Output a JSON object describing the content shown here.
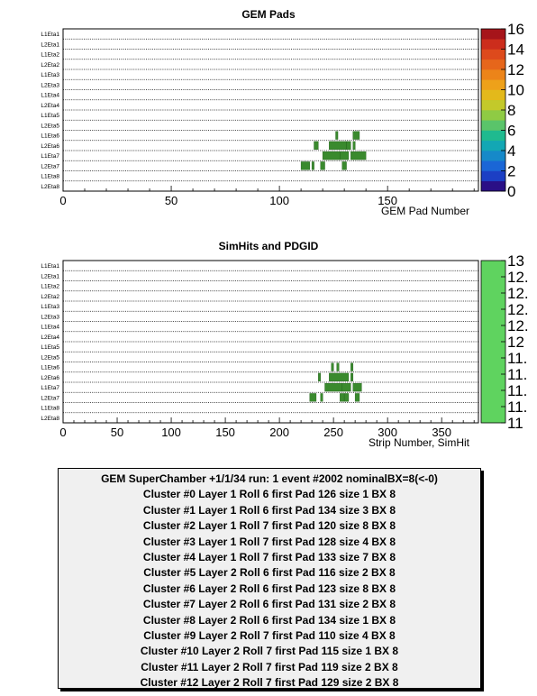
{
  "panels": [
    {
      "title": "GEM Pads",
      "xlabel": "GEM Pad Number",
      "xticks": [
        0,
        50,
        100,
        150
      ],
      "zticks": [
        "0",
        "2",
        "4",
        "6",
        "8",
        "10",
        "12",
        "14",
        "16"
      ]
    },
    {
      "title": "SimHits and PDGID",
      "xlabel": "Strip Number, SimHit",
      "xticks": [
        0,
        50,
        100,
        150,
        200,
        250,
        300,
        350
      ],
      "zticks": [
        "11",
        "11.",
        "11.",
        "11.",
        "11.",
        "12",
        "12.",
        "12.",
        "12.",
        "12.",
        "13"
      ]
    }
  ],
  "row_labels": [
    "L1Eta1",
    "L2Eta1",
    "L1Eta2",
    "L2Eta2",
    "L1Eta3",
    "L2Eta3",
    "L1Eta4",
    "L2Eta4",
    "L1Eta5",
    "L2Eta5",
    "L1Eta6",
    "L2Eta6",
    "L1Eta7",
    "L2Eta7",
    "L1Eta8",
    "L2Eta8"
  ],
  "colors": {
    "marker_green": "#3a8a2e",
    "sim_palette": "#5fd35f",
    "info_bg": "#f0f0f0"
  },
  "chart_data": [
    {
      "type": "heatmap",
      "title": "GEM Pads",
      "xlabel": "GEM Pad Number",
      "xlim": [
        0,
        192
      ],
      "zlim": [
        0,
        16
      ],
      "y_categories": [
        "L1Eta1",
        "L2Eta1",
        "L1Eta2",
        "L2Eta2",
        "L1Eta3",
        "L2Eta3",
        "L1Eta4",
        "L2Eta4",
        "L1Eta5",
        "L2Eta5",
        "L1Eta6",
        "L2Eta6",
        "L1Eta7",
        "L2Eta7",
        "L1Eta8",
        "L2Eta8"
      ],
      "cells": [
        {
          "row": "L1Eta6",
          "start": 126,
          "size": 1
        },
        {
          "row": "L1Eta6",
          "start": 134,
          "size": 3
        },
        {
          "row": "L2Eta6",
          "start": 116,
          "size": 2
        },
        {
          "row": "L2Eta6",
          "start": 123,
          "size": 8
        },
        {
          "row": "L2Eta6",
          "start": 131,
          "size": 2
        },
        {
          "row": "L2Eta6",
          "start": 134,
          "size": 1
        },
        {
          "row": "L1Eta7",
          "start": 120,
          "size": 8
        },
        {
          "row": "L1Eta7",
          "start": 128,
          "size": 4
        },
        {
          "row": "L1Eta7",
          "start": 133,
          "size": 7
        },
        {
          "row": "L2Eta7",
          "start": 110,
          "size": 4
        },
        {
          "row": "L2Eta7",
          "start": 115,
          "size": 1
        },
        {
          "row": "L2Eta7",
          "start": 119,
          "size": 2
        },
        {
          "row": "L2Eta7",
          "start": 129,
          "size": 2
        }
      ]
    },
    {
      "type": "heatmap",
      "title": "SimHits and PDGID",
      "xlabel": "Strip Number, SimHit",
      "xlim": [
        0,
        384
      ],
      "zlim": [
        11,
        13
      ],
      "y_categories": [
        "L1Eta1",
        "L2Eta1",
        "L1Eta2",
        "L2Eta2",
        "L1Eta3",
        "L2Eta3",
        "L1Eta4",
        "L2Eta4",
        "L1Eta5",
        "L2Eta5",
        "L1Eta6",
        "L2Eta6",
        "L1Eta7",
        "L2Eta7",
        "L1Eta8",
        "L2Eta8"
      ],
      "cells": [
        {
          "row": "L1Eta6",
          "start": 248,
          "size": 2
        },
        {
          "row": "L1Eta6",
          "start": 253,
          "size": 2
        },
        {
          "row": "L1Eta6",
          "start": 266,
          "size": 2
        },
        {
          "row": "L2Eta6",
          "start": 236,
          "size": 2
        },
        {
          "row": "L2Eta6",
          "start": 246,
          "size": 18
        },
        {
          "row": "L2Eta6",
          "start": 266,
          "size": 2
        },
        {
          "row": "L1Eta7",
          "start": 242,
          "size": 16
        },
        {
          "row": "L1Eta7",
          "start": 258,
          "size": 8
        },
        {
          "row": "L1Eta7",
          "start": 268,
          "size": 8
        },
        {
          "row": "L2Eta7",
          "start": 228,
          "size": 6
        },
        {
          "row": "L2Eta7",
          "start": 238,
          "size": 2
        },
        {
          "row": "L2Eta7",
          "start": 256,
          "size": 4
        },
        {
          "row": "L2Eta7",
          "start": 260,
          "size": 4
        },
        {
          "row": "L2Eta7",
          "start": 270,
          "size": 4
        }
      ]
    }
  ],
  "info": {
    "header": "GEM SuperChamber +1/1/34  run: 1  event #2002 nominalBX=8(<-0)",
    "lines": [
      "Cluster #0 Layer 1 Roll 6 first Pad 126 size 1 BX 8",
      "Cluster #1 Layer 1 Roll 6 first Pad 134 size 3 BX 8",
      "Cluster #2 Layer 1 Roll 7 first Pad 120 size 8 BX 8",
      "Cluster #3 Layer 1 Roll 7 first Pad 128 size 4 BX 8",
      "Cluster #4 Layer 1 Roll 7 first Pad 133 size 7 BX 8",
      "Cluster #5 Layer 2 Roll 6 first Pad 116 size 2 BX 8",
      "Cluster #6 Layer 2 Roll 6 first Pad 123 size 8 BX 8",
      "Cluster #7 Layer 2 Roll 6 first Pad 131 size 2 BX 8",
      "Cluster #8 Layer 2 Roll 6 first Pad 134 size 1 BX 8",
      "Cluster #9 Layer 2 Roll 7 first Pad 110 size 4 BX 8",
      "Cluster #10 Layer 2 Roll 7 first Pad 115 size 1 BX 8",
      "Cluster #11 Layer 2 Roll 7 first Pad 119 size 2 BX 8",
      "Cluster #12 Layer 2 Roll 7 first Pad 129 size 2 BX 8"
    ]
  }
}
